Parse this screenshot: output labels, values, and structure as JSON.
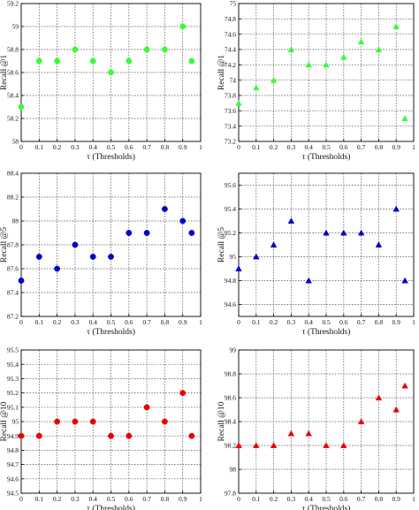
{
  "chart_data": [
    {
      "type": "scatter",
      "marker": "circle",
      "color": "#33ff33",
      "ylabel": "Recall @1",
      "xlabel": "τ (Thresholds)",
      "xlim": [
        0,
        1
      ],
      "ylim": [
        58,
        59.2
      ],
      "x_ticks": [
        "0",
        "0.1",
        "0.2",
        "0.3",
        "0.4",
        "0.5",
        "0.6",
        "0.7",
        "0.8",
        "0.9",
        "1"
      ],
      "y_ticks": [
        "58",
        "58.2",
        "58.4",
        "58.6",
        "58.8",
        "59",
        "59.2"
      ],
      "grid": true,
      "points": {
        "x": [
          0,
          0.1,
          0.2,
          0.3,
          0.4,
          0.5,
          0.6,
          0.7,
          0.8,
          0.9,
          0.95
        ],
        "y": [
          58.3,
          58.7,
          58.7,
          58.8,
          58.7,
          58.6,
          58.7,
          58.8,
          58.8,
          59.0,
          58.7
        ]
      }
    },
    {
      "type": "scatter",
      "marker": "triangle",
      "color": "#33ff33",
      "ylabel": "Recall @1",
      "xlabel": "τ (Thresholds)",
      "xlim": [
        0,
        1
      ],
      "ylim": [
        73.2,
        75
      ],
      "x_ticks": [
        "0",
        "0.1",
        "0.2",
        "0.3",
        "0.4",
        "0.5",
        "0.6",
        "0.7",
        "0.8",
        "0.9",
        "1"
      ],
      "y_ticks": [
        "73.2",
        "73.4",
        "73.6",
        "73.8",
        "74",
        "74.2",
        "74.4",
        "74.6",
        "74.8",
        "75"
      ],
      "grid": true,
      "points": {
        "x": [
          0,
          0.1,
          0.2,
          0.3,
          0.4,
          0.5,
          0.6,
          0.7,
          0.8,
          0.9,
          0.95
        ],
        "y": [
          73.7,
          73.9,
          74.0,
          74.4,
          74.2,
          74.2,
          74.3,
          74.5,
          74.4,
          74.7,
          73.5
        ]
      }
    },
    {
      "type": "scatter",
      "marker": "circle",
      "color": "#0000cc",
      "ylabel": "Recall @5",
      "xlabel": "τ (Thresholds)",
      "xlim": [
        0,
        1
      ],
      "ylim": [
        87.2,
        88.4
      ],
      "x_ticks": [
        "0",
        "0.1",
        "0.2",
        "0.3",
        "0.4",
        "0.5",
        "0.6",
        "0.7",
        "0.8",
        "0.9",
        "1"
      ],
      "y_ticks": [
        "87.2",
        "87.4",
        "87.6",
        "87.8",
        "88",
        "88.2",
        "88.4"
      ],
      "grid": true,
      "points": {
        "x": [
          0,
          0.1,
          0.2,
          0.3,
          0.4,
          0.5,
          0.6,
          0.7,
          0.8,
          0.9,
          0.95
        ],
        "y": [
          87.5,
          87.7,
          87.6,
          87.8,
          87.7,
          87.7,
          87.9,
          87.9,
          88.1,
          88.0,
          87.9
        ]
      }
    },
    {
      "type": "scatter",
      "marker": "triangle",
      "color": "#0000cc",
      "ylabel": "Recall @5",
      "xlabel": "τ (Thresholds)",
      "xlim": [
        0,
        1
      ],
      "ylim": [
        94.5,
        95.7
      ],
      "x_ticks": [
        "0",
        "0.1",
        "0.2",
        "0.3",
        "0.4",
        "0.5",
        "0.6",
        "0.7",
        "0.8",
        "0.9",
        "1"
      ],
      "y_ticks": [
        "94.6",
        "94.8",
        "95",
        "95.2",
        "95.4",
        "95.6"
      ],
      "grid": true,
      "points": {
        "x": [
          0,
          0.1,
          0.2,
          0.3,
          0.4,
          0.5,
          0.6,
          0.7,
          0.8,
          0.9,
          0.95
        ],
        "y": [
          94.9,
          95.0,
          95.1,
          95.3,
          94.8,
          95.2,
          95.2,
          95.2,
          95.1,
          95.4,
          94.8
        ]
      }
    },
    {
      "type": "scatter",
      "marker": "circle",
      "color": "#ee0000",
      "ylabel": "Recall @10",
      "xlabel": "τ (Thresholds)",
      "xlim": [
        0,
        1
      ],
      "ylim": [
        94.5,
        95.5
      ],
      "x_ticks": [
        "0",
        "0.1",
        "0.2",
        "0.3",
        "0.4",
        "0.5",
        "0.6",
        "0.7",
        "0.8",
        "0.9",
        "1"
      ],
      "y_ticks": [
        "94.5",
        "94.6",
        "94.7",
        "94.8",
        "94.9",
        "95",
        "95.1",
        "95.2",
        "95.3",
        "95.4",
        "95.5"
      ],
      "grid": true,
      "points": {
        "x": [
          0,
          0.1,
          0.2,
          0.3,
          0.4,
          0.5,
          0.6,
          0.7,
          0.8,
          0.9,
          0.95
        ],
        "y": [
          94.9,
          94.9,
          95.0,
          95.0,
          95.0,
          94.9,
          94.9,
          95.1,
          95.0,
          95.2,
          94.9
        ]
      }
    },
    {
      "type": "scatter",
      "marker": "triangle",
      "color": "#ee0000",
      "ylabel": "Recall @10",
      "xlabel": "τ (Thresholds)",
      "xlim": [
        0,
        1
      ],
      "ylim": [
        97.8,
        99
      ],
      "x_ticks": [
        "0",
        "0.1",
        "0.2",
        "0.3",
        "0.4",
        "0.5",
        "0.6",
        "0.7",
        "0.8",
        "0.9",
        "1"
      ],
      "y_ticks": [
        "97.8",
        "98",
        "98.2",
        "98.4",
        "98.6",
        "98.8",
        "99"
      ],
      "grid": true,
      "points": {
        "x": [
          0,
          0.1,
          0.2,
          0.3,
          0.4,
          0.5,
          0.6,
          0.7,
          0.8,
          0.9,
          0.95
        ],
        "y": [
          98.2,
          98.2,
          98.2,
          98.3,
          98.3,
          98.2,
          98.2,
          98.4,
          98.6,
          98.5,
          98.7
        ]
      }
    }
  ]
}
